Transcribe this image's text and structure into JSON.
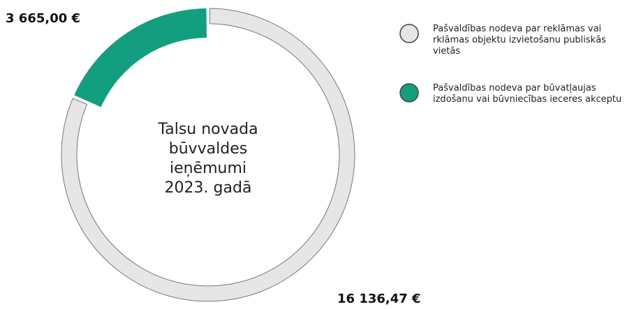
{
  "chart_data": {
    "type": "donut",
    "title": "Talsu novada būvvaldes ieņēmumi 2023. gadā",
    "categories": [
      "Pašvaldības nodeva par reklāmas vai rklāmas objektu izvietošanu publiskās vietās",
      "Pašvaldības nodeva par būvatļaujas izdošanu vai būvniecības ieceres akceptu"
    ],
    "values": [
      16136.47,
      3665.0
    ],
    "value_labels": [
      "16 136,47 €",
      "3 665,00 €"
    ],
    "colors": [
      "#e6e6e6",
      "#149e80"
    ]
  }
}
